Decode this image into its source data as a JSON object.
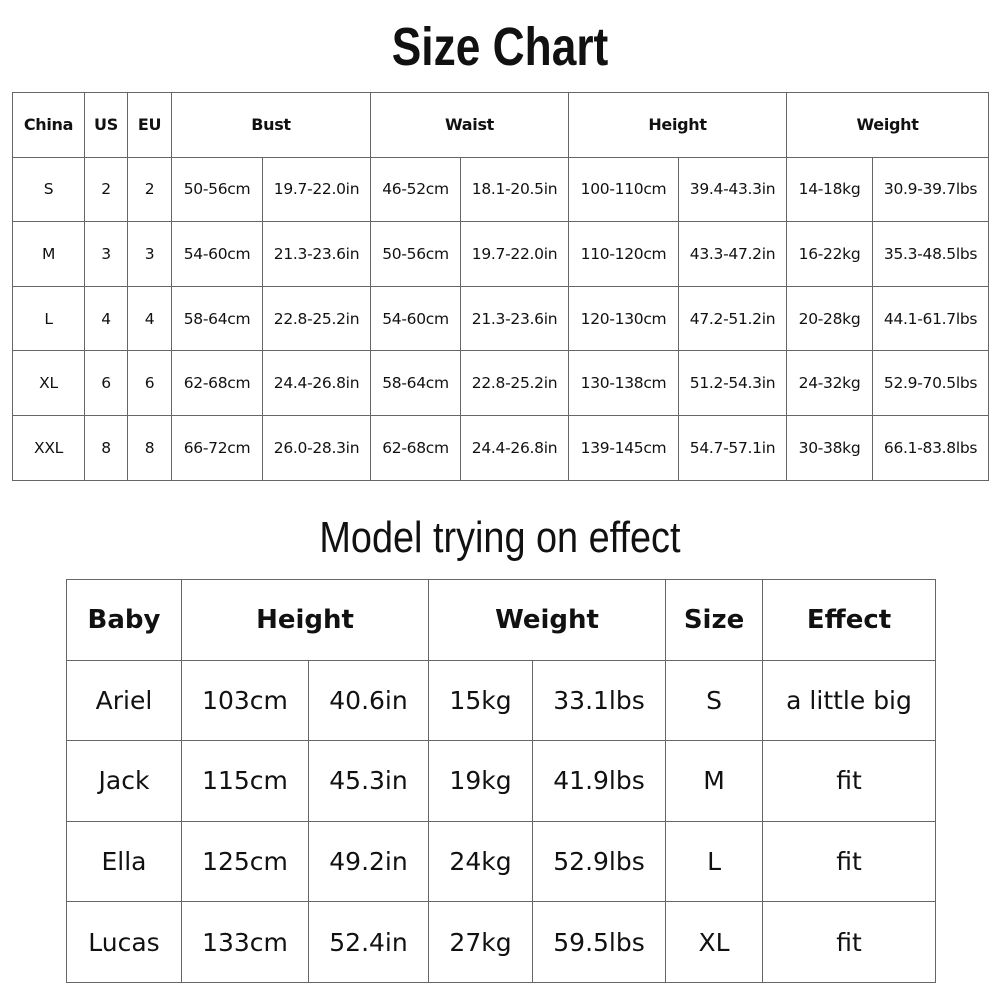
{
  "size_chart": {
    "title": "Size Chart",
    "headers": [
      "China",
      "US",
      "EU",
      "Bust",
      "Waist",
      "Height",
      "Weight"
    ],
    "rows": [
      [
        "S",
        "2",
        "2",
        "50-56cm",
        "19.7-22.0in",
        "46-52cm",
        "18.1-20.5in",
        "100-110cm",
        "39.4-43.3in",
        "14-18kg",
        "30.9-39.7lbs"
      ],
      [
        "M",
        "3",
        "3",
        "54-60cm",
        "21.3-23.6in",
        "50-56cm",
        "19.7-22.0in",
        "110-120cm",
        "43.3-47.2in",
        "16-22kg",
        "35.3-48.5lbs"
      ],
      [
        "L",
        "4",
        "4",
        "58-64cm",
        "22.8-25.2in",
        "54-60cm",
        "21.3-23.6in",
        "120-130cm",
        "47.2-51.2in",
        "20-28kg",
        "44.1-61.7lbs"
      ],
      [
        "XL",
        "6",
        "6",
        "62-68cm",
        "24.4-26.8in",
        "58-64cm",
        "22.8-25.2in",
        "130-138cm",
        "51.2-54.3in",
        "24-32kg",
        "52.9-70.5lbs"
      ],
      [
        "XXL",
        "8",
        "8",
        "66-72cm",
        "26.0-28.3in",
        "62-68cm",
        "24.4-26.8in",
        "139-145cm",
        "54.7-57.1in",
        "30-38kg",
        "66.1-83.8lbs"
      ]
    ]
  },
  "model_effect": {
    "title": "Model trying on effect",
    "headers": [
      "Baby",
      "Height",
      "Weight",
      "Size",
      "Effect"
    ],
    "rows": [
      [
        "Ariel",
        "103cm",
        "40.6in",
        "15kg",
        "33.1lbs",
        "S",
        "a little big"
      ],
      [
        "Jack",
        "115cm",
        "45.3in",
        "19kg",
        "41.9lbs",
        "M",
        "fit"
      ],
      [
        "Ella",
        "125cm",
        "49.2in",
        "24kg",
        "52.9lbs",
        "L",
        "fit"
      ],
      [
        "Lucas",
        "133cm",
        "52.4in",
        "27kg",
        "59.5lbs",
        "XL",
        "fit"
      ]
    ]
  }
}
